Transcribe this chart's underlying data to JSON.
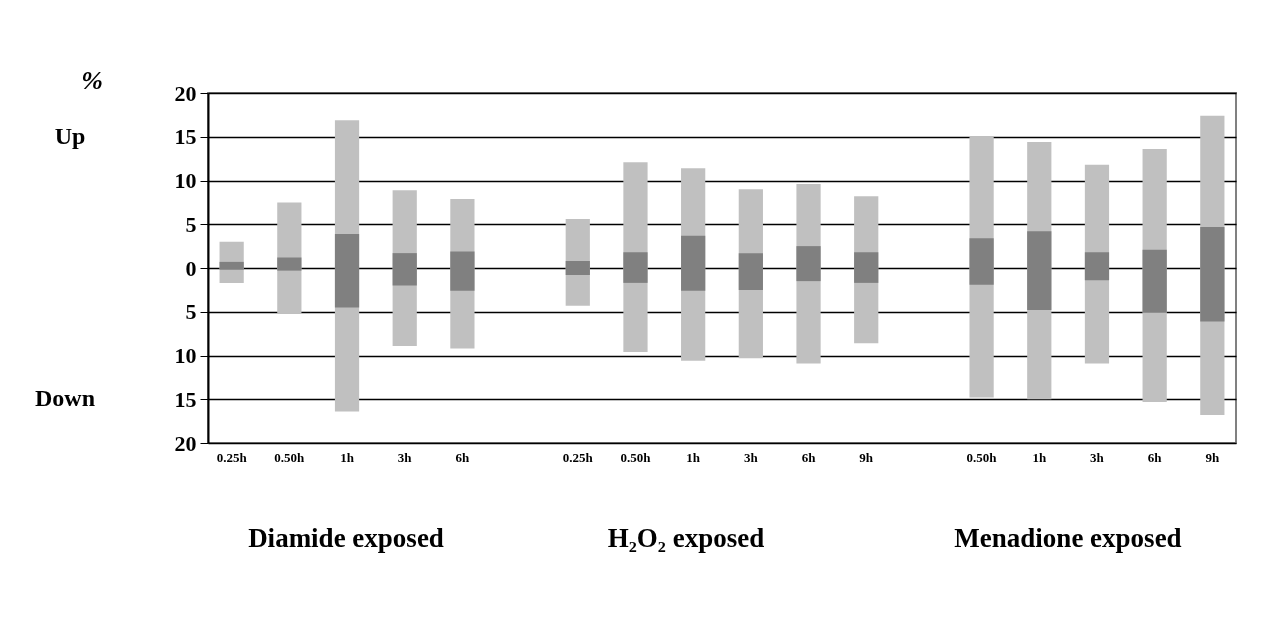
{
  "chart_data": {
    "type": "bar",
    "categories": [
      "0.25h",
      "0.50h",
      "1h",
      "3h",
      "6h",
      null,
      "0.25h",
      "0.50h",
      "1h",
      "3h",
      "6h",
      "9h",
      null,
      "0.50h",
      "1h",
      "3h",
      "6h",
      "9h"
    ],
    "series": [
      {
        "color": "#c0c0c0",
        "base": [
          -1.7,
          -5.2,
          -16.4,
          -8.9,
          -9.2,
          null,
          -4.3,
          -9.6,
          -10.6,
          -10.3,
          -10.9,
          -8.6,
          null,
          -14.8,
          -15,
          -10.9,
          -15.3,
          -16.8
        ],
        "values": [
          4.7,
          12.7,
          33.3,
          17.8,
          17.1,
          null,
          9.9,
          21.7,
          22.0,
          19.3,
          20.5,
          16.8,
          null,
          29.8,
          29.4,
          22.7,
          28.9,
          34.2
        ]
      },
      {
        "color": "#808080",
        "base": [
          -0.2,
          -0.3,
          -4.5,
          -2.0,
          -2.6,
          null,
          -0.8,
          -1.7,
          -2.6,
          -2.5,
          -1.5,
          -1.7,
          null,
          -1.9,
          -4.8,
          -1.4,
          -5.1,
          -6.1
        ],
        "values": [
          0.9,
          1.5,
          8.4,
          3.7,
          4.5,
          null,
          1.6,
          3.5,
          6.3,
          4.2,
          4.0,
          3.5,
          null,
          5.3,
          9.0,
          3.2,
          7.2,
          10.8
        ]
      }
    ],
    "ylim": [
      -20,
      20
    ],
    "yticks": [
      {
        "value": -20,
        "label": "20"
      },
      {
        "value": -15,
        "label": "15"
      },
      {
        "value": -10,
        "label": "10"
      },
      {
        "value": -5,
        "label": "5"
      },
      0,
      5,
      10,
      15,
      20
    ],
    "grid": "y",
    "annotations": [
      "%",
      "Up",
      "Down",
      "Diamide exposed",
      "H₂O₂ exposed",
      "Menadione exposed"
    ]
  }
}
